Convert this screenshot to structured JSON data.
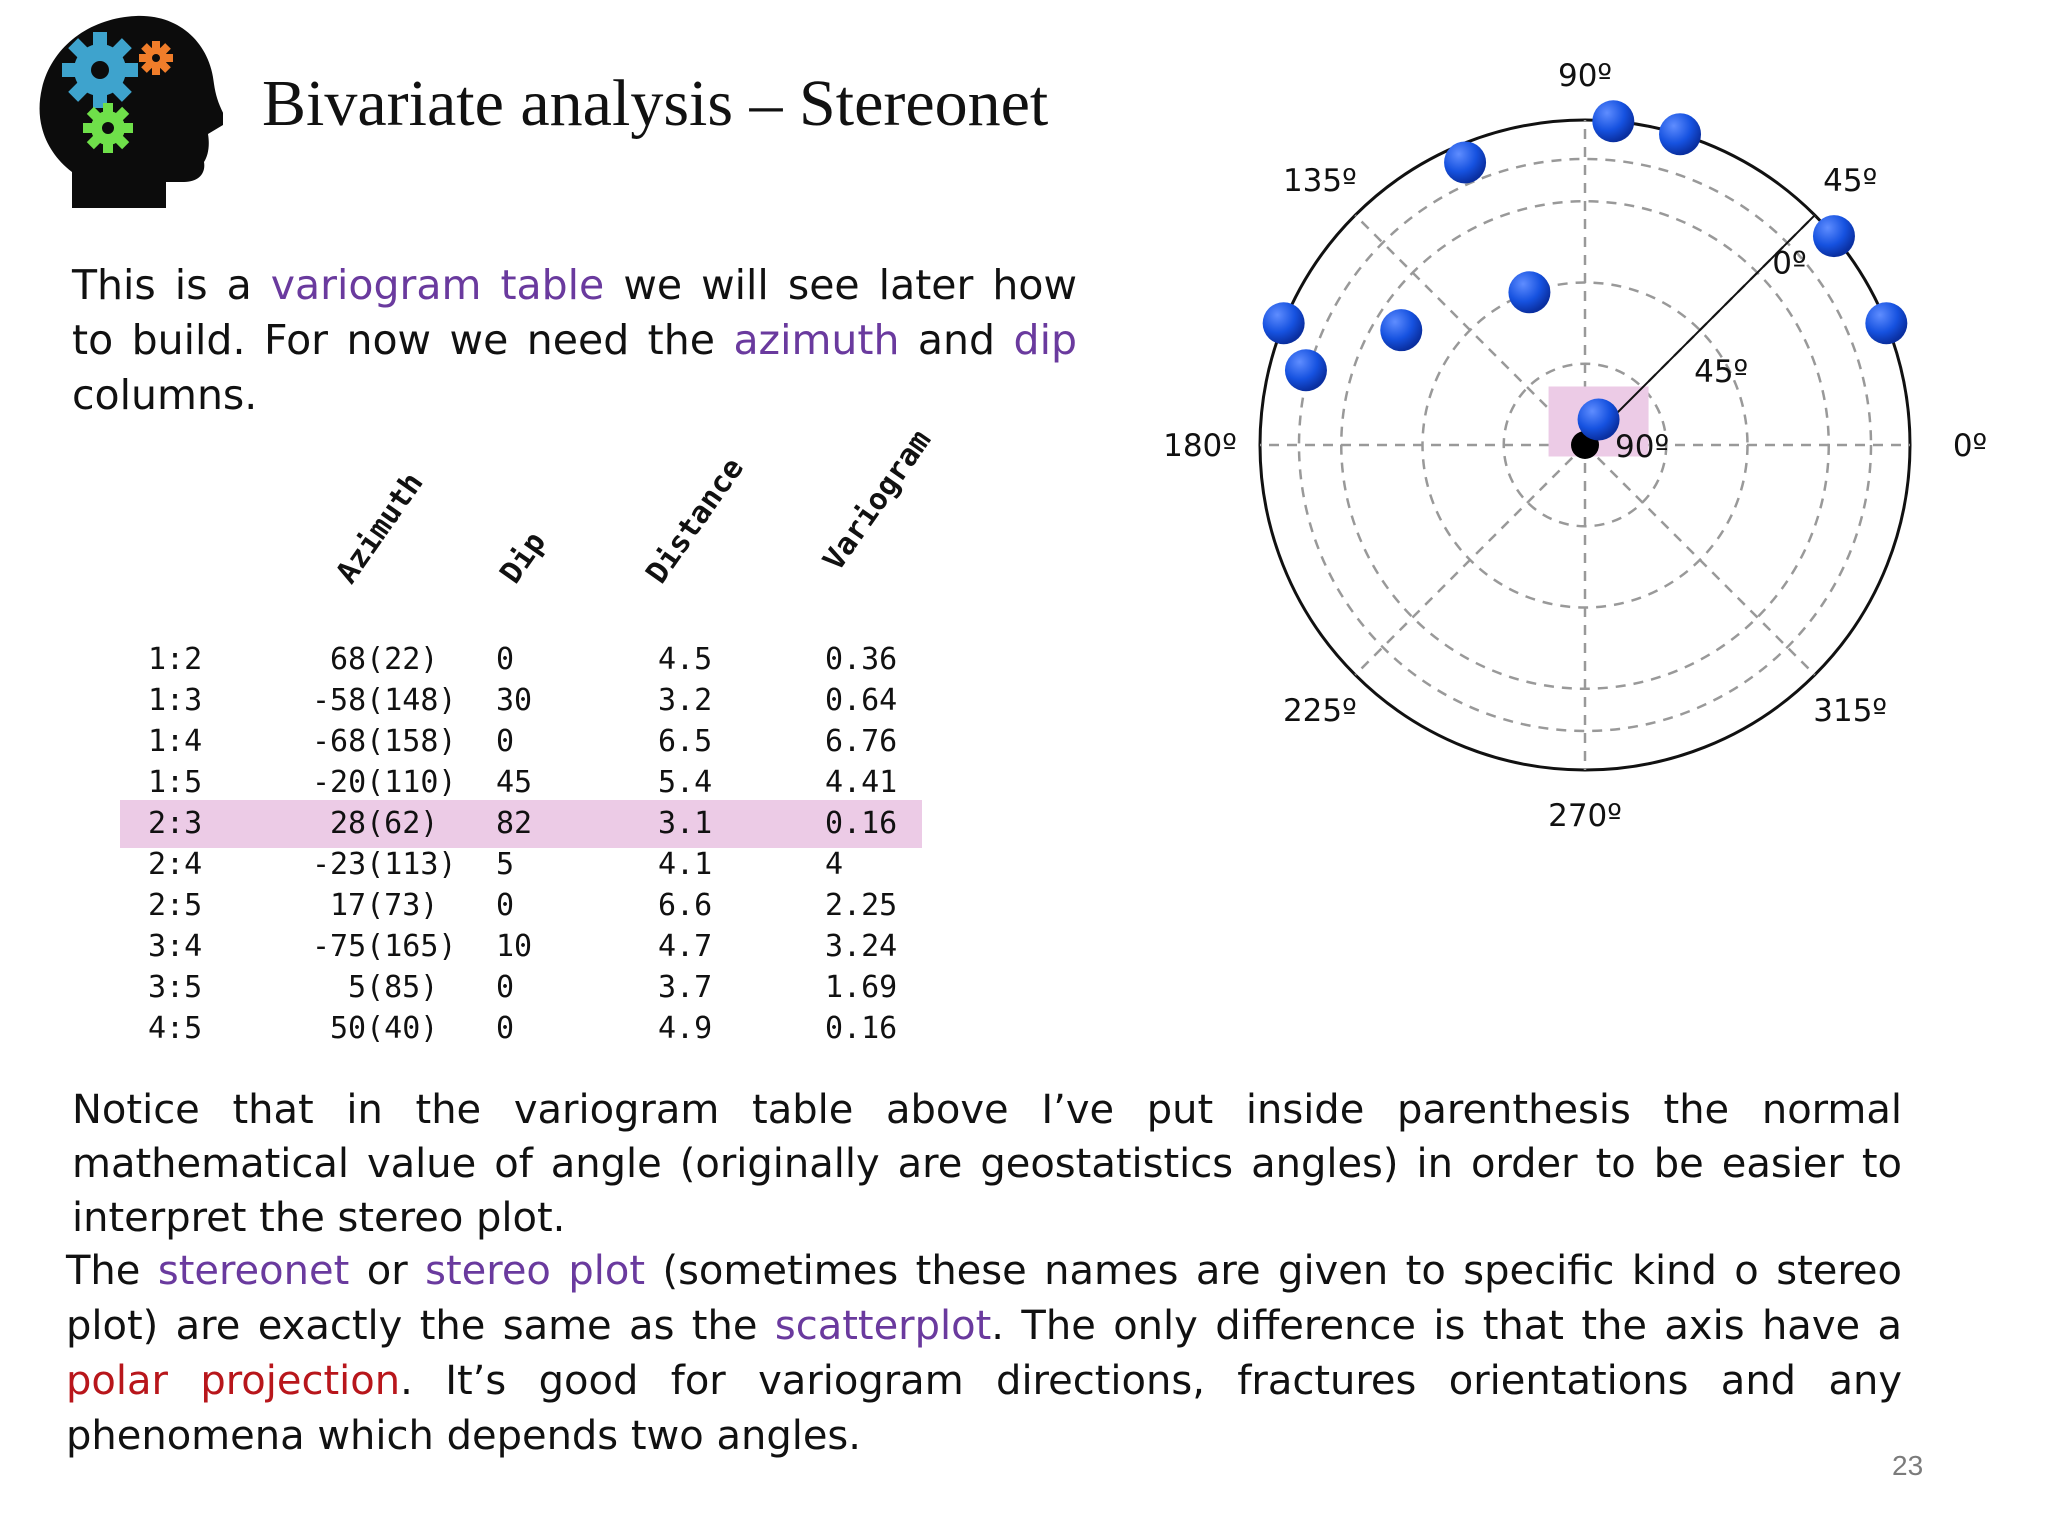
{
  "slide": {
    "title": "Bivariate analysis – Stereonet",
    "page_number": "23",
    "logo_icon": "head-with-gears-icon",
    "intro": {
      "t1": "This is a ",
      "k1": "variogram table",
      "t2": " we will see later how to build. For now we need the ",
      "k2": "azimuth",
      "t3": " and ",
      "k3": "dip",
      "t4": " columns."
    },
    "notice": "Notice that in the variogram table above I’ve put inside parenthesis the normal mathematical value of angle (originally are geostatistics angles) in order to be easier to interpret the stereo plot.",
    "explain": {
      "t1": "The ",
      "k1": "stereonet",
      "t2": " or ",
      "k2": "stereo plot",
      "t3": " (sometimes these names are given to specific kind o stereo plot) are exactly the same as the ",
      "k3": "scatterplot",
      "t4": ". The only difference is that the axis have a ",
      "k4": "polar projection",
      "t5": ". It’s good for variogram directions, fractures orientations and any phenomena which depends two angles."
    },
    "colors": {
      "keyword": "#6a3a9e",
      "keyword_red": "#b8161b",
      "highlight": "#eccbe6",
      "point": "#1652e0"
    }
  },
  "table": {
    "headers": [
      "Azimuth",
      "Dip",
      "Distance",
      "Variogram"
    ],
    "highlighted_row": 4,
    "rows": [
      {
        "pair": "1:2",
        "azimuth": "68(22)",
        "dip": "0",
        "distance": "4.5",
        "variogram": "0.36"
      },
      {
        "pair": "1:3",
        "azimuth": "-58(148)",
        "dip": "30",
        "distance": "3.2",
        "variogram": "0.64"
      },
      {
        "pair": "1:4",
        "azimuth": "-68(158)",
        "dip": "0",
        "distance": "6.5",
        "variogram": "6.76"
      },
      {
        "pair": "1:5",
        "azimuth": "-20(110)",
        "dip": "45",
        "distance": "5.4",
        "variogram": "4.41"
      },
      {
        "pair": "2:3",
        "azimuth": "28(62)",
        "dip": "82",
        "distance": "3.1",
        "variogram": "0.16"
      },
      {
        "pair": "2:4",
        "azimuth": "-23(113)",
        "dip": "5",
        "distance": "4.1",
        "variogram": "4"
      },
      {
        "pair": "2:5",
        "azimuth": "17(73)",
        "dip": "0",
        "distance": "6.6",
        "variogram": "2.25"
      },
      {
        "pair": "3:4",
        "azimuth": "-75(165)",
        "dip": "10",
        "distance": "4.7",
        "variogram": "3.24"
      },
      {
        "pair": "3:5",
        "azimuth": "5(85)",
        "dip": "0",
        "distance": "3.7",
        "variogram": "1.69"
      },
      {
        "pair": "4:5",
        "azimuth": "50(40)",
        "dip": "0",
        "distance": "4.9",
        "variogram": "0.16"
      }
    ]
  },
  "chart_data": {
    "type": "scatter",
    "projection": "polar",
    "angle_labels": [
      "0º",
      "45º",
      "90º",
      "135º",
      "180º",
      "225º",
      "270º",
      "315º"
    ],
    "dip_labels": [
      "0º",
      "45º",
      "90º"
    ],
    "dip_range": [
      0,
      90
    ],
    "grid": true,
    "points": [
      {
        "angle": 22,
        "dip": 0
      },
      {
        "angle": 148,
        "dip": 30
      },
      {
        "angle": 158,
        "dip": 0
      },
      {
        "angle": 110,
        "dip": 45
      },
      {
        "angle": 62,
        "dip": 82
      },
      {
        "angle": 113,
        "dip": 5
      },
      {
        "angle": 73,
        "dip": 0
      },
      {
        "angle": 165,
        "dip": 10
      },
      {
        "angle": 85,
        "dip": 0
      },
      {
        "angle": 40,
        "dip": 0
      }
    ],
    "highlighted_point": 4
  }
}
